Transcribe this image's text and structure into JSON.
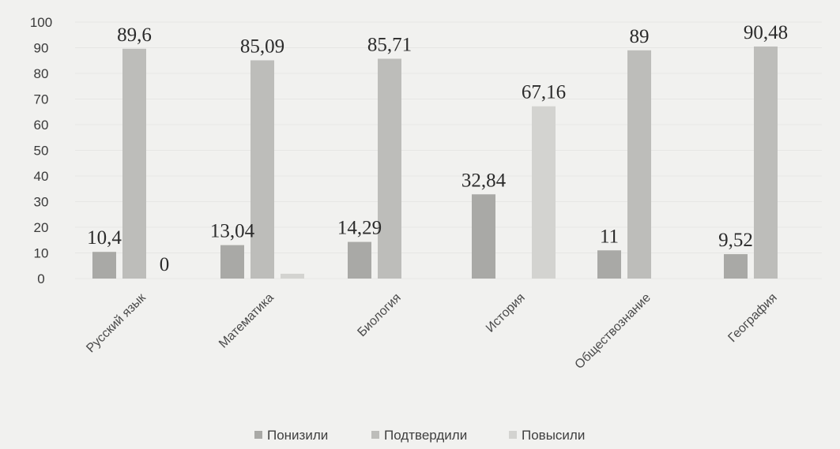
{
  "chart_data": {
    "type": "bar",
    "title": "",
    "xlabel": "",
    "ylabel": "",
    "categories": [
      "Русский язык",
      "Математика",
      "Биология",
      "История",
      "Обществознание",
      "География"
    ],
    "series": [
      {
        "name": "Понизили",
        "values": [
          10.4,
          13.04,
          14.29,
          32.84,
          11,
          9.52
        ],
        "color": "#a9a9a6"
      },
      {
        "name": "Подтвердили",
        "values": [
          89.6,
          85.09,
          85.71,
          0,
          89,
          90.48
        ],
        "color": "#bdbdba"
      },
      {
        "name": "Повысили",
        "values": [
          0,
          1.87,
          0,
          67.16,
          0,
          0
        ],
        "color": "#d3d3d0"
      }
    ],
    "data_labels": [
      [
        "10,4",
        "13,04",
        "14,29",
        "32,84",
        "11",
        "9,52"
      ],
      [
        "89,6",
        "85,09",
        "85,71",
        null,
        "89",
        "90,48"
      ],
      [
        "0",
        null,
        null,
        "67,16",
        null,
        null
      ]
    ],
    "y_ticks": [
      "0",
      "10",
      "20",
      "30",
      "40",
      "50",
      "60",
      "70",
      "80",
      "90",
      "100"
    ],
    "ylim": [
      0,
      100
    ],
    "grid": true,
    "legend_position": "bottom"
  }
}
